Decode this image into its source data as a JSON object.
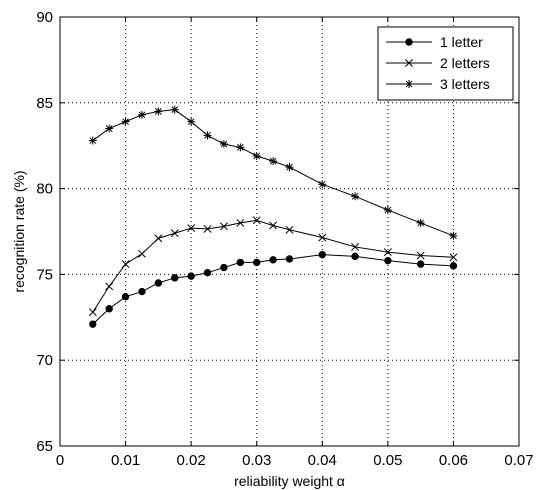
{
  "chart_data": {
    "type": "line",
    "xlabel": "reliability weight α",
    "ylabel": "recognition rate (%)",
    "xlim": [
      0,
      0.07
    ],
    "ylim": [
      65,
      90
    ],
    "xticks": [
      0,
      0.01,
      0.02,
      0.03,
      0.04,
      0.05,
      0.06,
      0.07
    ],
    "xtick_labels": [
      "0",
      "0.01",
      "0.02",
      "0.03",
      "0.04",
      "0.05",
      "0.06",
      "0.07"
    ],
    "yticks": [
      65,
      70,
      75,
      80,
      85,
      90
    ],
    "ytick_labels": [
      "65",
      "70",
      "75",
      "80",
      "85",
      "90"
    ],
    "grid": true,
    "legend_position": "top-right",
    "series": [
      {
        "name": "1 letter",
        "marker": "dot",
        "color": "#000000",
        "x": [
          0.005,
          0.0075,
          0.01,
          0.0125,
          0.015,
          0.0175,
          0.02,
          0.0225,
          0.025,
          0.0275,
          0.03,
          0.0325,
          0.035,
          0.04,
          0.045,
          0.05,
          0.055,
          0.06
        ],
        "y": [
          72.1,
          73.0,
          73.7,
          74.0,
          74.5,
          74.8,
          74.9,
          75.1,
          75.4,
          75.7,
          75.7,
          75.85,
          75.9,
          76.15,
          76.05,
          75.8,
          75.6,
          75.5
        ]
      },
      {
        "name": "2 letters",
        "marker": "x",
        "color": "#000000",
        "x": [
          0.005,
          0.0075,
          0.01,
          0.0125,
          0.015,
          0.0175,
          0.02,
          0.0225,
          0.025,
          0.0275,
          0.03,
          0.0325,
          0.035,
          0.04,
          0.045,
          0.05,
          0.055,
          0.06
        ],
        "y": [
          72.8,
          74.3,
          75.6,
          76.2,
          77.1,
          77.4,
          77.7,
          77.65,
          77.8,
          78.0,
          78.15,
          77.85,
          77.6,
          77.15,
          76.6,
          76.3,
          76.1,
          76.0
        ]
      },
      {
        "name": "3 letters",
        "marker": "star",
        "color": "#000000",
        "x": [
          0.005,
          0.0075,
          0.01,
          0.0125,
          0.015,
          0.0175,
          0.02,
          0.0225,
          0.025,
          0.0275,
          0.03,
          0.0325,
          0.035,
          0.04,
          0.045,
          0.05,
          0.055,
          0.06
        ],
        "y": [
          82.8,
          83.5,
          83.9,
          84.3,
          84.5,
          84.6,
          83.9,
          83.1,
          82.6,
          82.4,
          81.9,
          81.6,
          81.25,
          80.25,
          79.55,
          78.75,
          78.0,
          77.25
        ]
      }
    ]
  }
}
